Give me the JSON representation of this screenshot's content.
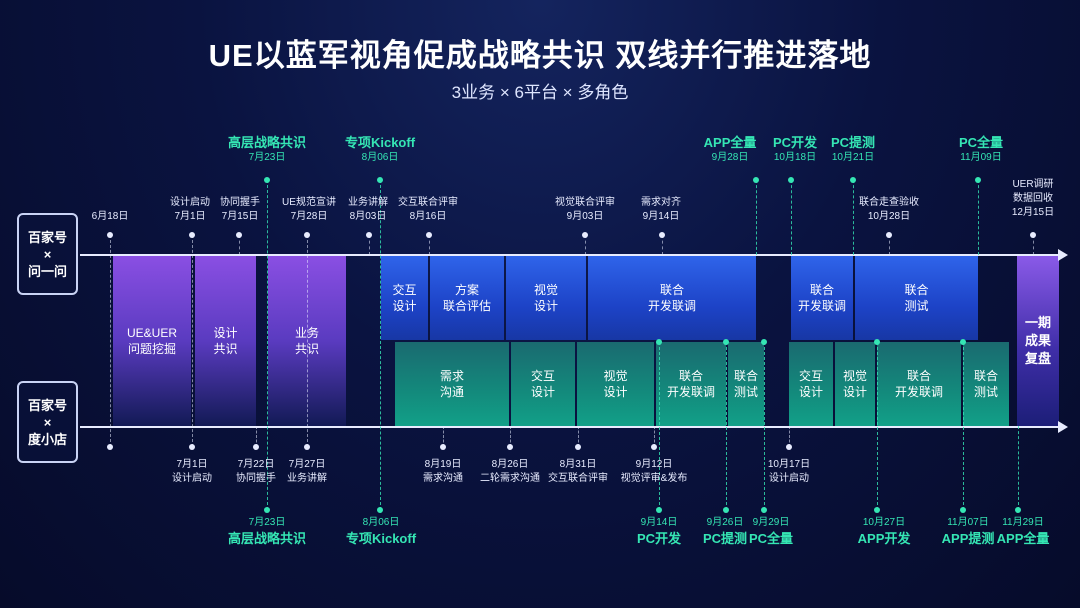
{
  "title": "UE以蓝军视角促成战略共识 双线并行推进落地",
  "subtitle": "3业务 × 6平台 × 多角色",
  "rows": {
    "top": "百家号\n×\n问一问",
    "bottom": "百家号\n×\n度小店"
  },
  "colors": {
    "accent_green": "#35e6b4",
    "purple": "#8a4fe3",
    "blue": "#2f64ea",
    "teal": "#12a088"
  },
  "top_milestones": [
    {
      "name": "高层战略共识",
      "date": "7月23日"
    },
    {
      "name": "专项Kickoff",
      "date": "8月06日"
    },
    {
      "name": "APP全量",
      "date": "9月28日"
    },
    {
      "name": "PC开发",
      "date": "10月18日"
    },
    {
      "name": "PC提测",
      "date": "10月21日"
    },
    {
      "name": "PC全量",
      "date": "11月09日"
    }
  ],
  "top_events": [
    {
      "date": "6月18日",
      "name": ""
    },
    {
      "name": "设计启动",
      "date": "7月1日"
    },
    {
      "name": "协同握手",
      "date": "7月15日"
    },
    {
      "name": "UE规范宣讲",
      "date": "7月28日"
    },
    {
      "name": "业务讲解",
      "date": "8月03日"
    },
    {
      "name": "交互联合评审",
      "date": "8月16日"
    },
    {
      "name": "视觉联合评审",
      "date": "9月03日"
    },
    {
      "name": "需求对齐",
      "date": "9月14日"
    },
    {
      "name": "联合走查验收",
      "date": "10月28日"
    },
    {
      "name": "UER调研\n数据回收",
      "date": "12月15日"
    }
  ],
  "top_phases": [
    {
      "label": "UE&UER\n问题挖掘"
    },
    {
      "label": "设计\n共识"
    },
    {
      "label": "业务\n共识"
    },
    {
      "label": "交互\n设计"
    },
    {
      "label": "方案\n联合评估"
    },
    {
      "label": "视觉\n设计"
    },
    {
      "label": "联合\n开发联调"
    },
    {
      "label": "联合\n开发联调"
    },
    {
      "label": "联合\n测试"
    },
    {
      "label": "一期\n成果\n复盘"
    }
  ],
  "bottom_phases": [
    {
      "label": "需求\n沟通"
    },
    {
      "label": "交互\n设计"
    },
    {
      "label": "视觉\n设计"
    },
    {
      "label": "联合\n开发联调"
    },
    {
      "label": "联合\n测试"
    },
    {
      "label": "交互\n设计"
    },
    {
      "label": "视觉\n设计"
    },
    {
      "label": "联合\n开发联调"
    },
    {
      "label": "联合\n测试"
    }
  ],
  "bottom_events": [
    {
      "date": "7月1日",
      "name": "设计启动"
    },
    {
      "date": "7月22日",
      "name": "协同握手"
    },
    {
      "date": "7月27日",
      "name": "业务讲解"
    },
    {
      "date": "8月19日",
      "name": "需求沟通"
    },
    {
      "date": "8月26日",
      "name": "二轮需求沟通"
    },
    {
      "date": "8月31日",
      "name": "交互联合评审"
    },
    {
      "date": "9月12日",
      "name": "视觉评审&发布"
    },
    {
      "date": "10月17日",
      "name": "设计启动"
    }
  ],
  "bottom_milestones": [
    {
      "date": "7月23日",
      "name": "高层战略共识"
    },
    {
      "date": "8月06日",
      "name": "专项Kickoff"
    },
    {
      "date": "9月14日",
      "name": "PC开发"
    },
    {
      "date": "9月26日",
      "name": "PC提测"
    },
    {
      "date": "9月29日",
      "name": "PC全量"
    },
    {
      "date": "10月27日",
      "name": "APP开发"
    },
    {
      "date": "11月07日",
      "name": "APP提测"
    },
    {
      "date": "11月29日",
      "name": "APP全量"
    }
  ]
}
